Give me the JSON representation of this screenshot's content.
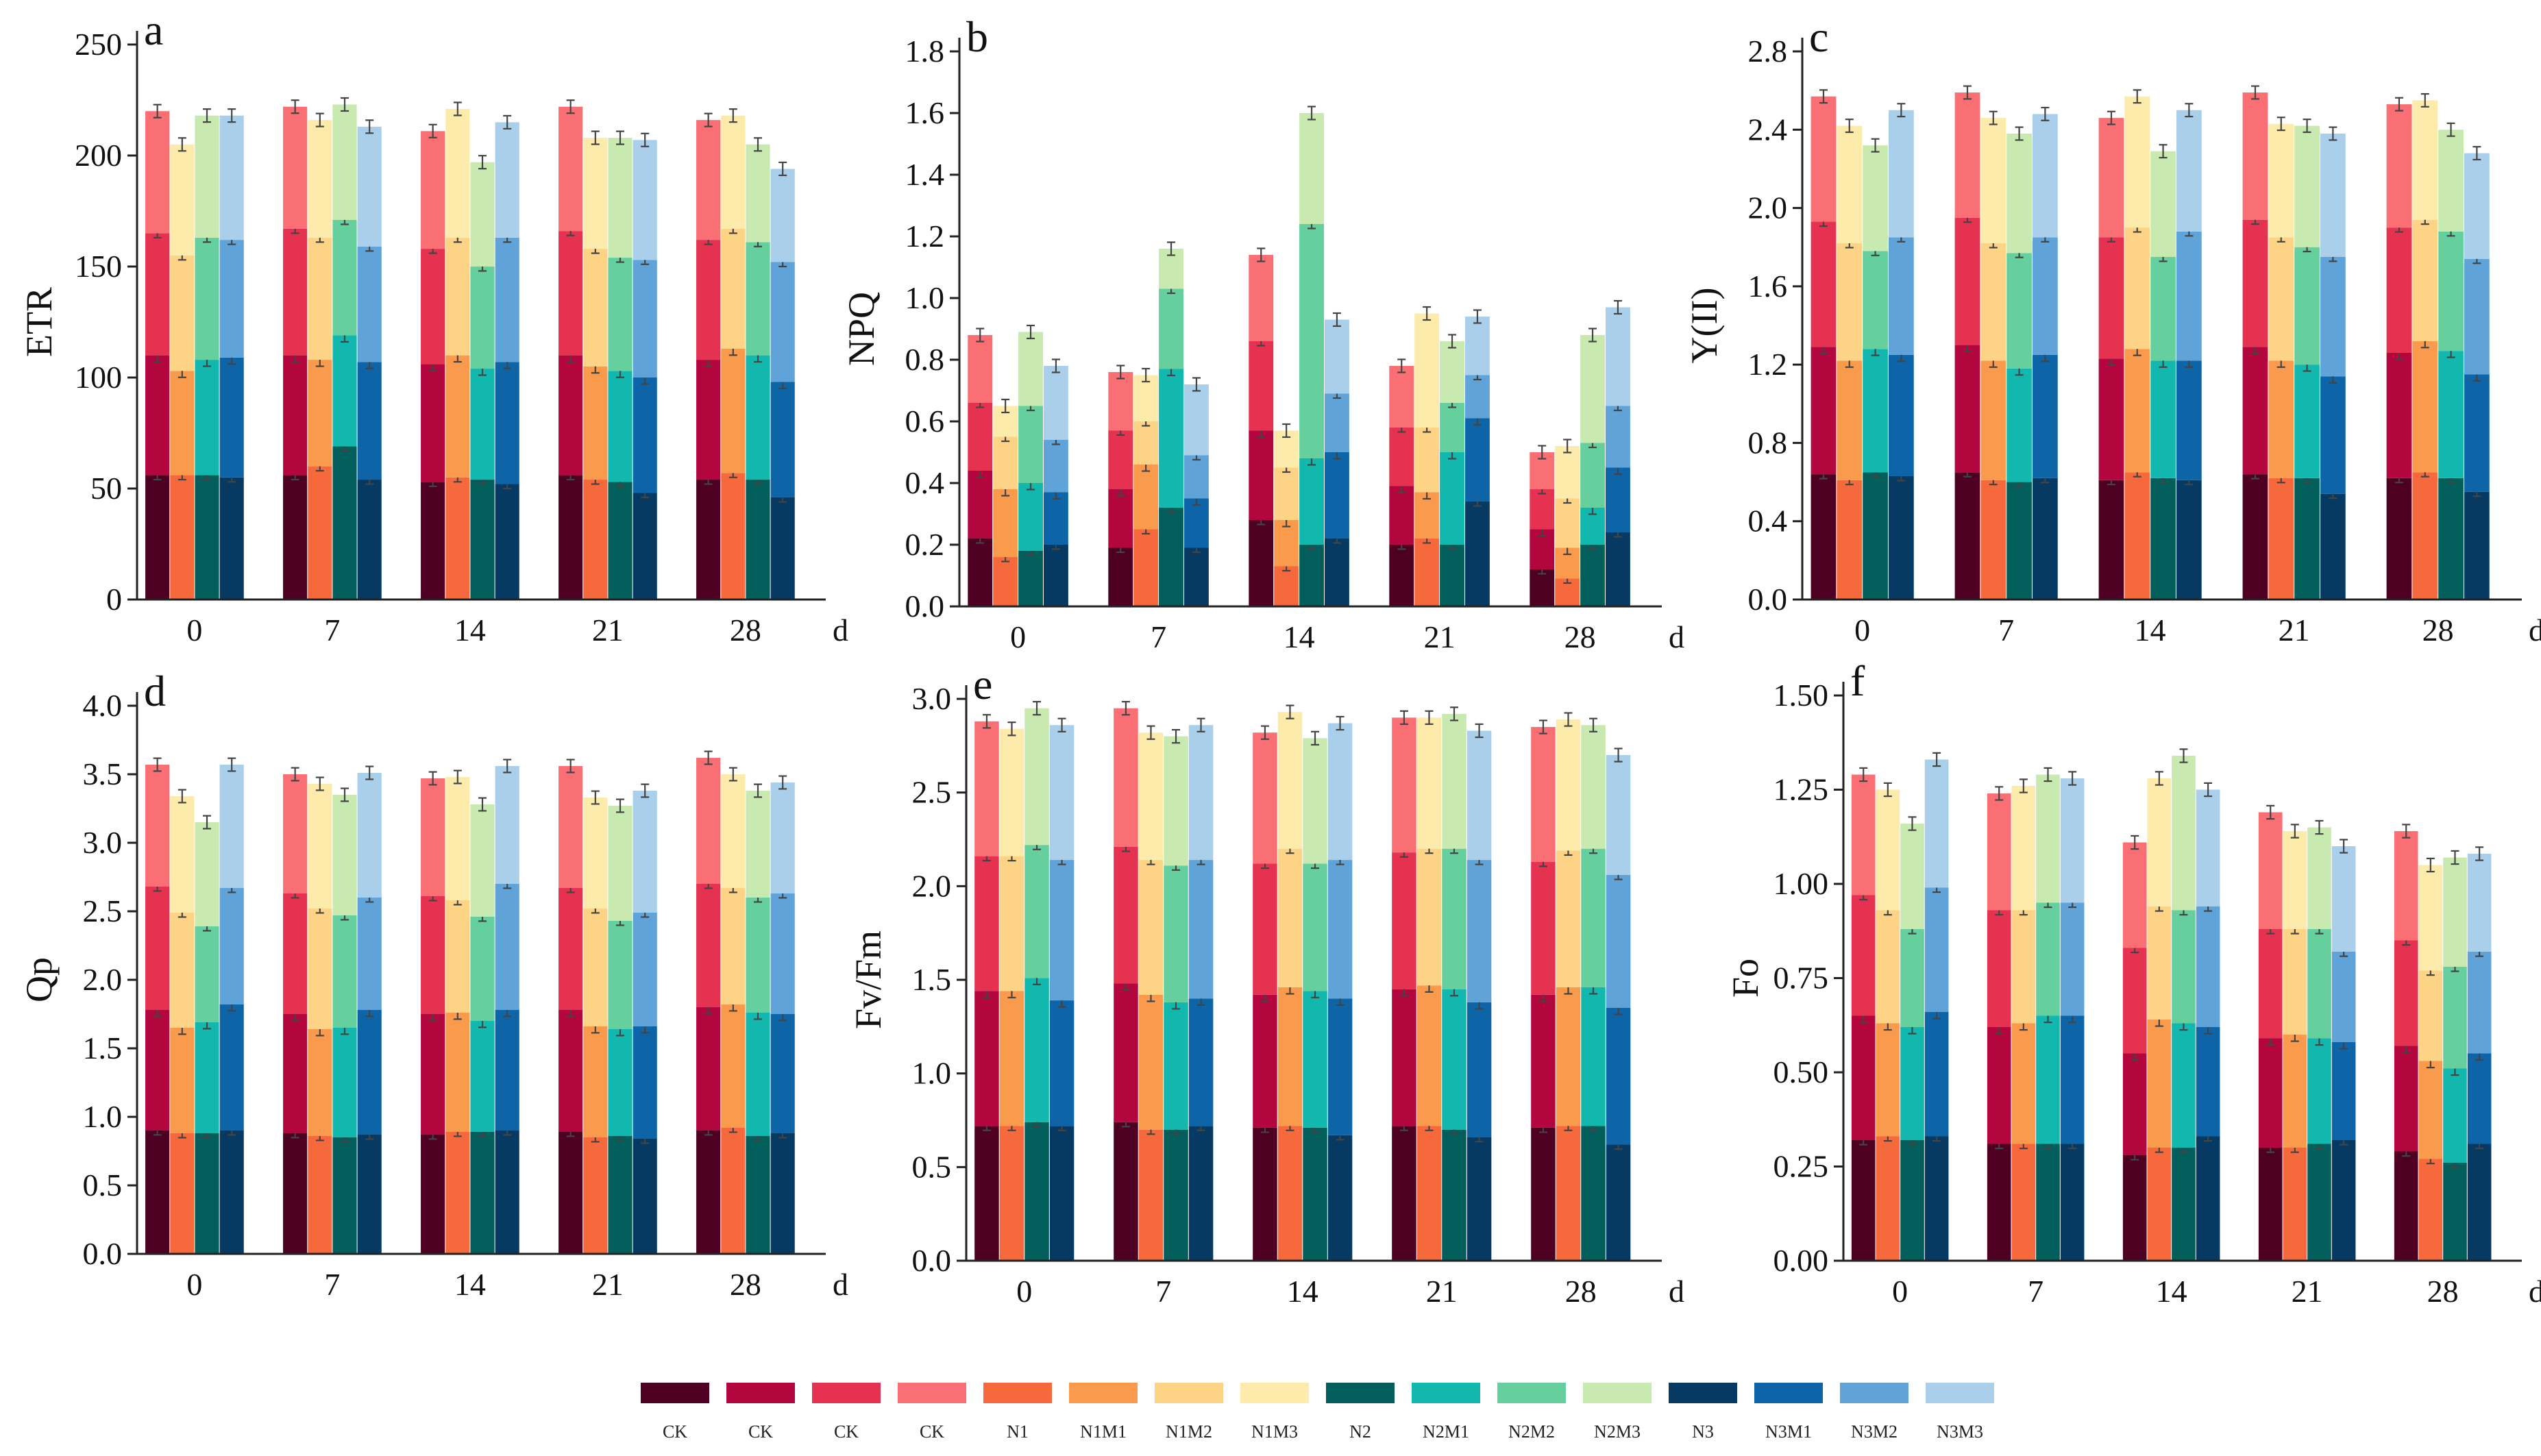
{
  "colors": {
    "CK1": "#4d0022",
    "CK2": "#b3063f",
    "CK3": "#e63251",
    "CK4": "#f96f73",
    "N1": "#f6693c",
    "N1M1": "#fa9a4c",
    "N1M2": "#fdd385",
    "N1M3": "#fcebaa",
    "N2": "#015e5b",
    "N2M1": "#12b8ad",
    "N2M2": "#66cf9e",
    "N2M3": "#c8eab0",
    "N3": "#063a62",
    "N3M1": "#0d64a6",
    "N3M2": "#5fa3d8",
    "N3M3": "#a9cfea"
  },
  "legend": [
    {
      "key": "CK1",
      "label": "CK"
    },
    {
      "key": "CK2",
      "label": "CK"
    },
    {
      "key": "CK3",
      "label": "CK"
    },
    {
      "key": "CK4",
      "label": "CK"
    },
    {
      "key": "N1",
      "label": "N1"
    },
    {
      "key": "N1M1",
      "label": "N1M1"
    },
    {
      "key": "N1M2",
      "label": "N1M2"
    },
    {
      "key": "N1M3",
      "label": "N1M3"
    },
    {
      "key": "N2",
      "label": "N2"
    },
    {
      "key": "N2M1",
      "label": "N2M1"
    },
    {
      "key": "N2M2",
      "label": "N2M2"
    },
    {
      "key": "N2M3",
      "label": "N2M3"
    },
    {
      "key": "N3",
      "label": "N3"
    },
    {
      "key": "N3M1",
      "label": "N3M1"
    },
    {
      "key": "N3M2",
      "label": "N3M2"
    },
    {
      "key": "N3M3",
      "label": "N3M3"
    }
  ],
  "chart_data": [
    {
      "type": "bar",
      "stacked": true,
      "panel": "a",
      "ylabel": "ETR",
      "xunit": "d",
      "categories": [
        "0",
        "7",
        "14",
        "21",
        "28"
      ],
      "ylim": [
        0,
        250
      ],
      "yticks": [
        "0",
        "50",
        "100",
        "150",
        "200",
        "250"
      ],
      "bar_groups": [
        [
          "CK1",
          "CK2",
          "CK3",
          "CK4"
        ],
        [
          "N1",
          "N1M1",
          "N1M2",
          "N1M3"
        ],
        [
          "N2",
          "N2M1",
          "N2M2",
          "N2M3"
        ],
        [
          "N3",
          "N3M1",
          "N3M2",
          "N3M3"
        ]
      ],
      "totals": [
        [
          56,
          110,
          165,
          220
        ],
        [
          56,
          103,
          155,
          205
        ],
        [
          56,
          108,
          163,
          218
        ],
        [
          55,
          109,
          162,
          218
        ],
        [
          56,
          110,
          167,
          222
        ],
        [
          60,
          108,
          163,
          216
        ],
        [
          69,
          119,
          171,
          223
        ],
        [
          54,
          107,
          159,
          213
        ],
        [
          53,
          106,
          158,
          211
        ],
        [
          55,
          110,
          163,
          221
        ],
        [
          54,
          104,
          150,
          197
        ],
        [
          52,
          107,
          163,
          215
        ],
        [
          56,
          110,
          166,
          222
        ],
        [
          54,
          105,
          158,
          208
        ],
        [
          53,
          103,
          154,
          208
        ],
        [
          48,
          100,
          153,
          207
        ],
        [
          54,
          108,
          162,
          216
        ],
        [
          57,
          113,
          167,
          218
        ],
        [
          54,
          110,
          161,
          205
        ],
        [
          46,
          98,
          152,
          194
        ]
      ]
    },
    {
      "type": "bar",
      "stacked": true,
      "panel": "b",
      "ylabel": "NPQ",
      "xunit": "d",
      "categories": [
        "0",
        "7",
        "14",
        "21",
        "28"
      ],
      "ylim": [
        0,
        1.8
      ],
      "yticks": [
        "0.0",
        "0.2",
        "0.4",
        "0.6",
        "0.8",
        "1.0",
        "1.2",
        "1.4",
        "1.6",
        "1.8"
      ],
      "bar_groups": [
        [
          "CK1",
          "CK2",
          "CK3",
          "CK4"
        ],
        [
          "N1",
          "N1M1",
          "N1M2",
          "N1M3"
        ],
        [
          "N2",
          "N2M1",
          "N2M2",
          "N2M3"
        ],
        [
          "N3",
          "N3M1",
          "N3M2",
          "N3M3"
        ]
      ],
      "totals": [
        [
          0.22,
          0.44,
          0.66,
          0.88
        ],
        [
          0.16,
          0.38,
          0.55,
          0.65
        ],
        [
          0.18,
          0.4,
          0.65,
          0.89
        ],
        [
          0.2,
          0.37,
          0.54,
          0.78
        ],
        [
          0.19,
          0.38,
          0.57,
          0.76
        ],
        [
          0.25,
          0.46,
          0.6,
          0.75
        ],
        [
          0.32,
          0.77,
          1.03,
          1.16
        ],
        [
          0.19,
          0.35,
          0.49,
          0.72
        ],
        [
          0.28,
          0.57,
          0.86,
          1.14
        ],
        [
          0.13,
          0.28,
          0.45,
          0.57
        ],
        [
          0.2,
          0.48,
          1.24,
          1.6
        ],
        [
          0.22,
          0.5,
          0.69,
          0.93
        ],
        [
          0.2,
          0.39,
          0.58,
          0.78
        ],
        [
          0.22,
          0.37,
          0.58,
          0.95
        ],
        [
          0.2,
          0.5,
          0.66,
          0.86
        ],
        [
          0.34,
          0.61,
          0.75,
          0.94
        ],
        [
          0.12,
          0.25,
          0.38,
          0.5
        ],
        [
          0.09,
          0.19,
          0.35,
          0.52
        ],
        [
          0.2,
          0.32,
          0.53,
          0.88
        ],
        [
          0.24,
          0.45,
          0.65,
          0.97
        ]
      ]
    },
    {
      "type": "bar",
      "stacked": true,
      "panel": "c",
      "ylabel": "Y(II)",
      "xunit": "d",
      "categories": [
        "0",
        "7",
        "14",
        "21",
        "28"
      ],
      "ylim": [
        0,
        2.8
      ],
      "yticks": [
        "0.0",
        "0.4",
        "0.8",
        "1.2",
        "1.6",
        "2.0",
        "2.4",
        "2.8"
      ],
      "bar_groups": [
        [
          "CK1",
          "CK2",
          "CK3",
          "CK4"
        ],
        [
          "N1",
          "N1M1",
          "N1M2",
          "N1M3"
        ],
        [
          "N2",
          "N2M1",
          "N2M2",
          "N2M3"
        ],
        [
          "N3",
          "N3M1",
          "N3M2",
          "N3M3"
        ]
      ],
      "totals": [
        [
          0.64,
          1.29,
          1.93,
          2.57
        ],
        [
          0.61,
          1.22,
          1.82,
          2.42
        ],
        [
          0.65,
          1.28,
          1.78,
          2.32
        ],
        [
          0.63,
          1.25,
          1.85,
          2.5
        ],
        [
          0.65,
          1.3,
          1.95,
          2.59
        ],
        [
          0.61,
          1.22,
          1.82,
          2.46
        ],
        [
          0.6,
          1.18,
          1.77,
          2.38
        ],
        [
          0.62,
          1.25,
          1.85,
          2.48
        ],
        [
          0.61,
          1.23,
          1.85,
          2.46
        ],
        [
          0.65,
          1.28,
          1.9,
          2.57
        ],
        [
          0.62,
          1.22,
          1.75,
          2.29
        ],
        [
          0.61,
          1.22,
          1.88,
          2.5
        ],
        [
          0.64,
          1.29,
          1.94,
          2.59
        ],
        [
          0.62,
          1.22,
          1.85,
          2.43
        ],
        [
          0.62,
          1.2,
          1.8,
          2.42
        ],
        [
          0.54,
          1.14,
          1.75,
          2.38
        ],
        [
          0.62,
          1.26,
          1.9,
          2.53
        ],
        [
          0.65,
          1.32,
          1.94,
          2.55
        ],
        [
          0.62,
          1.27,
          1.88,
          2.4
        ],
        [
          0.55,
          1.15,
          1.74,
          2.28
        ]
      ]
    },
    {
      "type": "bar",
      "stacked": true,
      "panel": "d",
      "ylabel": "Qp",
      "xunit": "d",
      "categories": [
        "0",
        "7",
        "14",
        "21",
        "28"
      ],
      "ylim": [
        0,
        4.0
      ],
      "yticks": [
        "0.0",
        "0.5",
        "1.0",
        "1.5",
        "2.0",
        "2.5",
        "3.0",
        "3.5",
        "4.0"
      ],
      "bar_groups": [
        [
          "CK1",
          "CK2",
          "CK3",
          "CK4"
        ],
        [
          "N1",
          "N1M1",
          "N1M2",
          "N1M3"
        ],
        [
          "N2",
          "N2M1",
          "N2M2",
          "N2M3"
        ],
        [
          "N3",
          "N3M1",
          "N3M2",
          "N3M3"
        ]
      ],
      "totals": [
        [
          0.9,
          1.78,
          2.68,
          3.57
        ],
        [
          0.88,
          1.65,
          2.49,
          3.34
        ],
        [
          0.88,
          1.69,
          2.39,
          3.15
        ],
        [
          0.9,
          1.82,
          2.67,
          3.57
        ],
        [
          0.88,
          1.75,
          2.63,
          3.5
        ],
        [
          0.86,
          1.64,
          2.52,
          3.43
        ],
        [
          0.85,
          1.65,
          2.47,
          3.35
        ],
        [
          0.87,
          1.78,
          2.6,
          3.51
        ],
        [
          0.87,
          1.75,
          2.61,
          3.47
        ],
        [
          0.89,
          1.76,
          2.58,
          3.48
        ],
        [
          0.89,
          1.7,
          2.46,
          3.28
        ],
        [
          0.9,
          1.78,
          2.7,
          3.56
        ],
        [
          0.89,
          1.78,
          2.67,
          3.56
        ],
        [
          0.85,
          1.66,
          2.52,
          3.33
        ],
        [
          0.86,
          1.64,
          2.43,
          3.27
        ],
        [
          0.84,
          1.66,
          2.49,
          3.38
        ],
        [
          0.9,
          1.8,
          2.7,
          3.62
        ],
        [
          0.92,
          1.82,
          2.67,
          3.5
        ],
        [
          0.86,
          1.76,
          2.6,
          3.38
        ],
        [
          0.88,
          1.75,
          2.63,
          3.44
        ]
      ]
    },
    {
      "type": "bar",
      "stacked": true,
      "panel": "e",
      "ylabel": "Fv/Fm",
      "xunit": "d",
      "categories": [
        "0",
        "7",
        "14",
        "21",
        "28"
      ],
      "ylim": [
        0,
        3.0
      ],
      "yticks": [
        "0.0",
        "0.5",
        "1.0",
        "1.5",
        "2.0",
        "2.5",
        "3.0"
      ],
      "bar_groups": [
        [
          "CK1",
          "CK2",
          "CK3",
          "CK4"
        ],
        [
          "N1",
          "N1M1",
          "N1M2",
          "N1M3"
        ],
        [
          "N2",
          "N2M1",
          "N2M2",
          "N2M3"
        ],
        [
          "N3",
          "N3M1",
          "N3M2",
          "N3M3"
        ]
      ],
      "totals": [
        [
          0.72,
          1.44,
          2.16,
          2.88
        ],
        [
          0.72,
          1.44,
          2.16,
          2.84
        ],
        [
          0.74,
          1.51,
          2.22,
          2.95
        ],
        [
          0.72,
          1.39,
          2.14,
          2.86
        ],
        [
          0.74,
          1.48,
          2.21,
          2.95
        ],
        [
          0.7,
          1.42,
          2.14,
          2.82
        ],
        [
          0.7,
          1.38,
          2.11,
          2.8
        ],
        [
          0.72,
          1.4,
          2.14,
          2.86
        ],
        [
          0.71,
          1.42,
          2.12,
          2.82
        ],
        [
          0.72,
          1.46,
          2.2,
          2.93
        ],
        [
          0.71,
          1.44,
          2.12,
          2.79
        ],
        [
          0.67,
          1.4,
          2.14,
          2.87
        ],
        [
          0.72,
          1.45,
          2.18,
          2.9
        ],
        [
          0.72,
          1.47,
          2.2,
          2.9
        ],
        [
          0.7,
          1.45,
          2.2,
          2.92
        ],
        [
          0.66,
          1.38,
          2.14,
          2.83
        ],
        [
          0.71,
          1.42,
          2.13,
          2.85
        ],
        [
          0.72,
          1.46,
          2.19,
          2.89
        ],
        [
          0.72,
          1.46,
          2.2,
          2.86
        ],
        [
          0.62,
          1.35,
          2.06,
          2.7
        ]
      ]
    },
    {
      "type": "bar",
      "stacked": true,
      "panel": "f",
      "ylabel": "Fo",
      "xunit": "d",
      "categories": [
        "0",
        "7",
        "14",
        "21",
        "28"
      ],
      "ylim": [
        0,
        1.5
      ],
      "yticks": [
        "0.00",
        "0.25",
        "0.50",
        "0.75",
        "1.00",
        "1.25",
        "1.50"
      ],
      "bar_groups": [
        [
          "CK1",
          "CK2",
          "CK3",
          "CK4"
        ],
        [
          "N1",
          "N1M1",
          "N1M2",
          "N1M3"
        ],
        [
          "N2",
          "N2M1",
          "N2M2",
          "N2M3"
        ],
        [
          "N3",
          "N3M1",
          "N3M2",
          "N3M3"
        ]
      ],
      "totals": [
        [
          0.32,
          0.65,
          0.97,
          1.29
        ],
        [
          0.33,
          0.63,
          0.93,
          1.25
        ],
        [
          0.32,
          0.62,
          0.88,
          1.16
        ],
        [
          0.33,
          0.66,
          0.99,
          1.33
        ],
        [
          0.31,
          0.62,
          0.93,
          1.24
        ],
        [
          0.31,
          0.63,
          0.93,
          1.26
        ],
        [
          0.31,
          0.65,
          0.95,
          1.29
        ],
        [
          0.31,
          0.65,
          0.95,
          1.28
        ],
        [
          0.28,
          0.55,
          0.83,
          1.11
        ],
        [
          0.3,
          0.64,
          0.94,
          1.28
        ],
        [
          0.3,
          0.63,
          0.93,
          1.34
        ],
        [
          0.33,
          0.62,
          0.94,
          1.25
        ],
        [
          0.3,
          0.59,
          0.88,
          1.19
        ],
        [
          0.3,
          0.6,
          0.88,
          1.14
        ],
        [
          0.31,
          0.59,
          0.88,
          1.15
        ],
        [
          0.32,
          0.58,
          0.82,
          1.1
        ],
        [
          0.29,
          0.57,
          0.85,
          1.14
        ],
        [
          0.27,
          0.53,
          0.77,
          1.05
        ],
        [
          0.26,
          0.51,
          0.78,
          1.07
        ],
        [
          0.31,
          0.55,
          0.82,
          1.08
        ]
      ]
    }
  ]
}
